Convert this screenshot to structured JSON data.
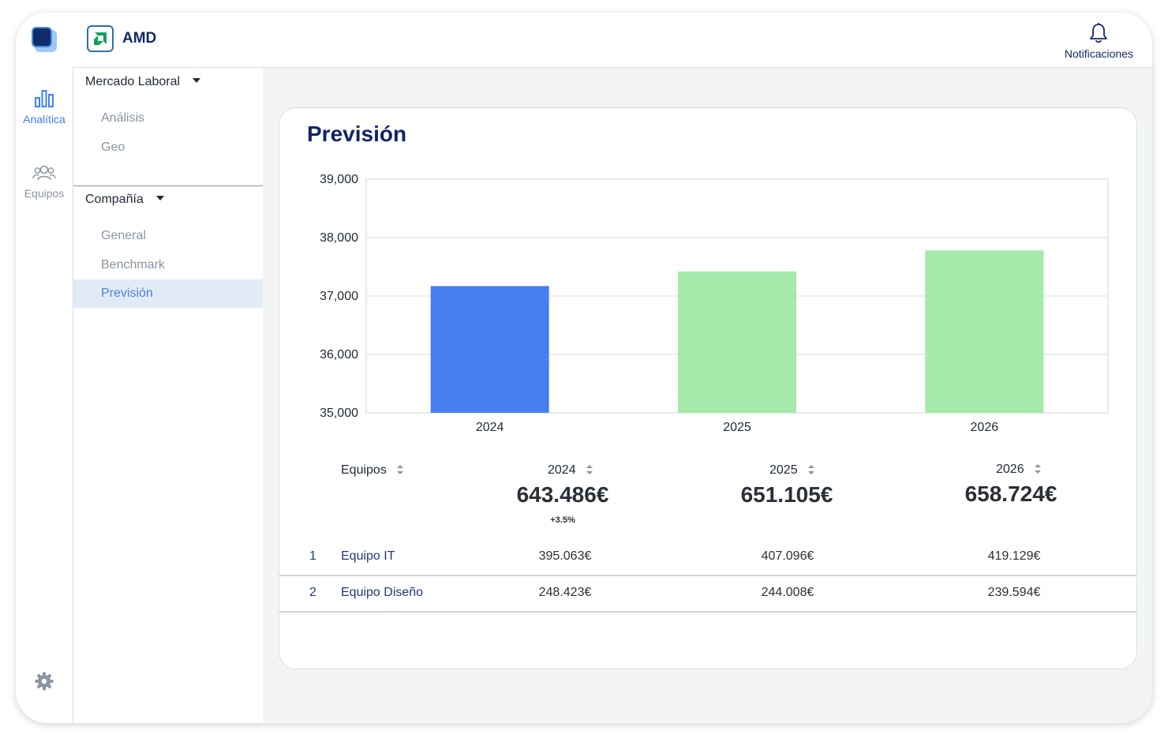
{
  "app": {
    "brand": "AMD"
  },
  "rail": {
    "items": [
      {
        "label": "Analítica",
        "icon": "bar-chart-icon",
        "active": true
      },
      {
        "label": "Equipos",
        "icon": "users-icon",
        "active": false
      }
    ],
    "settings_icon": "gear-icon"
  },
  "header": {
    "notifications_label": "Notificaciones"
  },
  "submenu": {
    "groups": [
      {
        "title": "Mercado Laboral",
        "items": [
          "Análisis",
          "Geo"
        ]
      },
      {
        "title": "Compañía",
        "items": [
          "General",
          "Benchmark",
          "Previsión"
        ]
      }
    ],
    "active_item": "Previsión"
  },
  "main": {
    "title": "Previsión"
  },
  "chart_data": {
    "type": "bar",
    "categories": [
      "2024",
      "2025",
      "2026"
    ],
    "values": [
      37170,
      37420,
      37780
    ],
    "colors": [
      "#487ef0",
      "#a5e9ab",
      "#a5e9ab"
    ],
    "ylim": [
      35000,
      39000
    ],
    "yticks": [
      "39,000",
      "38,000",
      "37,000",
      "36,000",
      "35,000"
    ],
    "grid": true
  },
  "table": {
    "headers": {
      "teams": "Equipos",
      "y2024": "2024",
      "y2025": "2025",
      "y2026": "2026"
    },
    "totals": {
      "y2024": "643.486€",
      "y2025": "651.105€",
      "y2026": "658.724€"
    },
    "delta_2024": "+3.5%",
    "rows": [
      {
        "index": "1",
        "name": "Equipo IT",
        "y2024": "395.063€",
        "y2025": "407.096€",
        "y2026": "419.129€"
      },
      {
        "index": "2",
        "name": "Equipo Diseño",
        "y2024": "248.423€",
        "y2025": "244.008€",
        "y2026": "239.594€"
      }
    ]
  },
  "colors": {
    "accent": "#3b82f6",
    "navy": "#0f2569",
    "forecast_bar": "#a5e9ab",
    "current_bar": "#487ef0"
  }
}
